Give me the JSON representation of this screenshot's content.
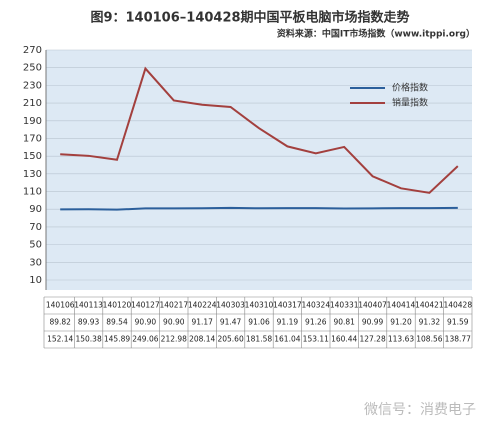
{
  "chart_data": {
    "type": "line",
    "title": "图9：140106–140428期中国平板电脑市场指数走势",
    "subtitle": "资料来源：中国IT市场指数（www.itppi.org）",
    "watermark": "微信号：消费电子",
    "categories": [
      "140106",
      "140113",
      "140120",
      "140127",
      "140217",
      "140224",
      "140303",
      "140310",
      "140317",
      "140324",
      "140331",
      "140407",
      "140414",
      "140421",
      "140428"
    ],
    "series": [
      {
        "name": "价格指数",
        "color": "#2b5f9b",
        "values": [
          89.82,
          89.93,
          89.54,
          90.9,
          90.9,
          91.17,
          91.47,
          91.06,
          91.19,
          91.26,
          90.81,
          90.99,
          91.2,
          91.32,
          91.59
        ],
        "value_labels": [
          "89.82",
          "89.93",
          "89.54",
          "90.90",
          "90.90",
          "91.17",
          "91.47",
          "91.06",
          "91.19",
          "91.26",
          "90.81",
          "90.99",
          "91.20",
          "91.32",
          "91.59"
        ]
      },
      {
        "name": "销量指数",
        "color": "#a3403e",
        "values": [
          152.14,
          150.38,
          145.89,
          249.06,
          212.98,
          208.14,
          205.6,
          181.58,
          161.04,
          153.11,
          160.44,
          127.28,
          113.63,
          108.56,
          138.77
        ],
        "value_labels": [
          "152.14",
          "150.38",
          "145.89",
          "249.06",
          "212.98",
          "208.14",
          "205.60",
          "181.58",
          "161.04",
          "153.11",
          "160.44",
          "127.28",
          "113.63",
          "108.56",
          "138.77"
        ]
      }
    ],
    "ylim": [
      10,
      270
    ],
    "yticks": [
      10,
      30,
      50,
      70,
      90,
      110,
      130,
      150,
      170,
      190,
      210,
      230,
      250,
      270
    ],
    "grid": true,
    "legend": "upper right"
  }
}
